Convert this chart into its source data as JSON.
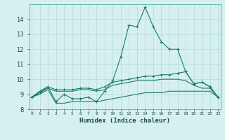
{
  "title": "",
  "xlabel": "Humidex (Indice chaleur)",
  "x": [
    0,
    1,
    2,
    3,
    4,
    5,
    6,
    7,
    8,
    9,
    10,
    11,
    12,
    13,
    14,
    15,
    16,
    17,
    18,
    19,
    20,
    21,
    22,
    23
  ],
  "line_main": [
    8.8,
    9.2,
    9.5,
    8.5,
    9.0,
    8.7,
    8.7,
    8.8,
    8.5,
    9.2,
    9.9,
    11.5,
    13.6,
    13.5,
    14.8,
    13.5,
    12.5,
    12.0,
    12.0,
    10.5,
    9.7,
    9.8,
    9.5,
    8.8
  ],
  "line_upper": [
    8.8,
    9.1,
    9.5,
    9.3,
    9.3,
    9.3,
    9.4,
    9.4,
    9.3,
    9.5,
    9.8,
    9.9,
    10.0,
    10.1,
    10.2,
    10.2,
    10.3,
    10.3,
    10.4,
    10.5,
    9.7,
    9.8,
    9.5,
    8.8
  ],
  "line_mid": [
    8.8,
    9.1,
    9.4,
    9.2,
    9.2,
    9.2,
    9.3,
    9.3,
    9.2,
    9.3,
    9.6,
    9.7,
    9.8,
    9.9,
    9.9,
    9.9,
    10.0,
    10.0,
    10.0,
    9.9,
    9.6,
    9.4,
    9.4,
    8.8
  ],
  "line_min": [
    8.8,
    9.0,
    9.3,
    8.4,
    8.4,
    8.5,
    8.5,
    8.5,
    8.5,
    8.6,
    8.7,
    8.8,
    8.9,
    9.0,
    9.1,
    9.1,
    9.1,
    9.2,
    9.2,
    9.2,
    9.2,
    9.2,
    9.2,
    8.8
  ],
  "ylim": [
    8.0,
    15.0
  ],
  "yticks": [
    8,
    9,
    10,
    11,
    12,
    13,
    14
  ],
  "bg_color": "#d6f0ef",
  "line_color": "#1a7a6e",
  "grid_color": "#b8dedd",
  "spine_color": "#5aada0"
}
